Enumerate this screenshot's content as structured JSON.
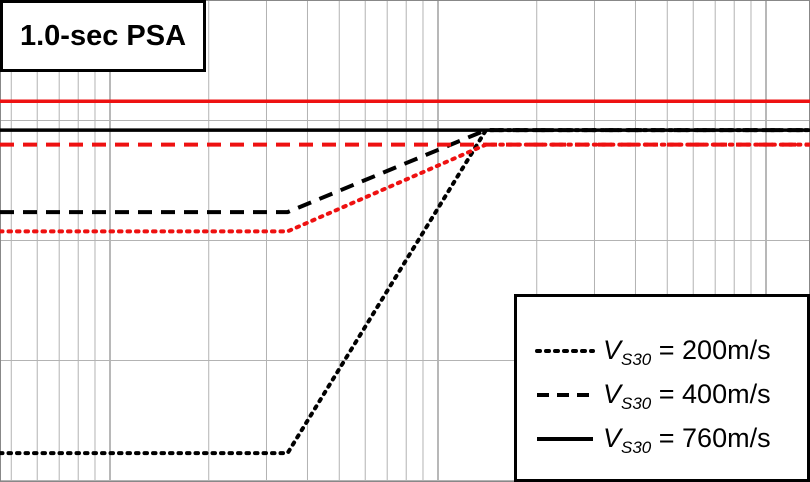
{
  "chart_data": {
    "type": "line",
    "title": "1.0-sec PSA",
    "xscale": "log",
    "grid": true,
    "legend_position": "bottom-right",
    "series": [
      {
        "name": "= 200m/s",
        "vs30": "200",
        "color": "#000000",
        "dash": "dotted",
        "points": [
          [
            0,
            0.06
          ],
          [
            0.355,
            0.06
          ],
          [
            0.6,
            0.73
          ],
          [
            1,
            0.73
          ]
        ]
      },
      {
        "name": "= 400m/s",
        "vs30": "400",
        "color": "#000000",
        "dash": "dashed",
        "points": [
          [
            0,
            0.56
          ],
          [
            0.355,
            0.56
          ],
          [
            0.6,
            0.73
          ],
          [
            1,
            0.73
          ]
        ]
      },
      {
        "name": "= 760m/s",
        "vs30": "760",
        "color": "#000000",
        "dash": "solid",
        "points": [
          [
            0,
            0.73
          ],
          [
            1,
            0.73
          ]
        ]
      },
      {
        "name": "",
        "color": "#ee1111",
        "dash": "solid",
        "points": [
          [
            0,
            0.79
          ],
          [
            1,
            0.79
          ]
        ]
      },
      {
        "name": "",
        "color": "#ee1111",
        "dash": "dashed",
        "points": [
          [
            0,
            0.7
          ],
          [
            1,
            0.7
          ]
        ]
      },
      {
        "name": "",
        "color": "#ee1111",
        "dash": "dotted",
        "points": [
          [
            0,
            0.52
          ],
          [
            0.355,
            0.52
          ],
          [
            0.6,
            0.7
          ],
          [
            1,
            0.7
          ]
        ]
      }
    ]
  },
  "legend": [
    {
      "var": "V",
      "sub": "S30",
      "text": " = 200m/s",
      "dash": "dotted"
    },
    {
      "var": "V",
      "sub": "S30",
      "text": " = 400m/s",
      "dash": "dashed"
    },
    {
      "var": "V",
      "sub": "S30",
      "text": " = 760m/s",
      "dash": "solid"
    }
  ]
}
